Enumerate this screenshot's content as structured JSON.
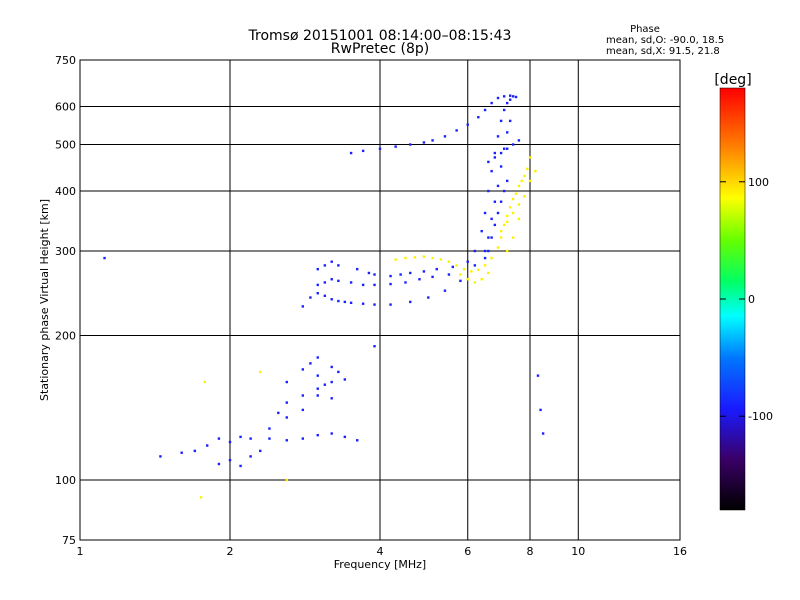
{
  "chart_data": {
    "type": "scatter",
    "title": "Tromsø 20151001 08:14:00–08:15:43",
    "subtitle": "RwPretec (8p)",
    "xlabel": "Frequency [MHz]",
    "ylabel": "Stationary phase Virtual Height [km]",
    "x_scale": "log",
    "y_scale": "log",
    "xlim": [
      1,
      16
    ],
    "ylim": [
      75,
      750
    ],
    "x_ticks": [
      1,
      2,
      4,
      6,
      8,
      10,
      16
    ],
    "x_tick_labels": [
      "1",
      "2",
      "4",
      "6",
      "8",
      "10",
      "16"
    ],
    "y_ticks": [
      75,
      100,
      200,
      300,
      400,
      500,
      600,
      750
    ],
    "y_tick_labels": [
      "75",
      "100",
      "200",
      "300",
      "400",
      "500",
      "600",
      "750"
    ],
    "x_grid": [
      1,
      2,
      4,
      6,
      8,
      10,
      16
    ],
    "y_grid": [
      100,
      200,
      300,
      400,
      500,
      600
    ],
    "grid": true,
    "stats": {
      "heading": "Phase",
      "line_o": "mean, sd,O: -90.0, 18.5",
      "line_x": "mean, sd,X:  91.5, 21.8"
    },
    "colorbar": {
      "label": "[deg]",
      "range": [
        -180,
        180
      ],
      "ticks": [
        100,
        0,
        -100
      ],
      "tick_labels": [
        "100",
        "0",
        "-100"
      ]
    },
    "series": [
      {
        "mode": "O",
        "phase_mean_deg": -90.0,
        "phase_sd_deg": 18.5,
        "x": [
          1.45,
          1.6,
          1.7,
          1.8,
          1.9,
          2.0,
          2.1,
          2.2,
          2.4,
          2.6,
          2.8,
          3.0,
          3.2,
          3.4,
          3.6,
          1.9,
          2.0,
          2.1,
          2.2,
          2.3,
          2.4,
          2.6,
          2.8,
          3.0,
          3.2,
          2.5,
          2.6,
          2.8,
          3.0,
          3.2,
          2.6,
          2.8,
          3.0,
          2.9,
          3.0,
          3.1,
          3.2,
          3.3,
          3.4,
          2.8,
          2.9,
          3.0,
          3.1,
          3.2,
          3.3,
          3.4,
          3.5,
          3.7,
          3.9,
          4.2,
          4.6,
          5.0,
          5.4,
          5.8,
          6.2,
          6.5,
          3.0,
          3.1,
          3.2,
          3.3,
          3.5,
          3.7,
          3.9,
          4.2,
          4.5,
          4.8,
          5.1,
          5.5,
          3.0,
          3.1,
          3.2,
          3.3,
          3.6,
          3.8,
          3.9,
          4.2,
          4.4,
          4.6,
          4.9,
          5.2,
          5.6,
          6.0,
          6.2,
          6.4,
          6.5,
          6.6,
          6.7,
          6.8,
          6.9,
          7.0,
          7.1,
          7.2,
          7.3,
          7.4,
          6.6,
          6.7,
          6.8,
          6.9,
          7.0,
          7.1,
          7.2,
          7.3,
          6.5,
          6.6,
          6.7,
          6.8,
          6.9,
          7.0,
          7.1,
          7.2,
          3.5,
          3.7,
          4.0,
          4.3,
          4.6,
          4.9,
          5.1,
          5.4,
          5.7,
          6.0,
          6.3,
          6.5,
          6.7,
          6.9,
          7.1,
          7.3,
          7.5,
          6.6,
          6.8,
          7.0,
          7.2,
          7.4,
          7.6,
          1.12,
          3.9,
          8.3,
          8.4,
          8.5
        ],
        "y": [
          112,
          114,
          115,
          118,
          122,
          120,
          123,
          122,
          122,
          121,
          122,
          124,
          125,
          123,
          121,
          108,
          110,
          107,
          112,
          115,
          128,
          135,
          140,
          150,
          160,
          138,
          145,
          150,
          155,
          148,
          160,
          170,
          180,
          175,
          165,
          158,
          172,
          168,
          162,
          230,
          240,
          245,
          242,
          238,
          236,
          235,
          234,
          233,
          232,
          232,
          235,
          240,
          248,
          260,
          280,
          300,
          255,
          258,
          262,
          260,
          258,
          255,
          255,
          256,
          258,
          262,
          265,
          268,
          275,
          280,
          285,
          280,
          275,
          270,
          268,
          266,
          268,
          270,
          272,
          275,
          278,
          285,
          300,
          330,
          360,
          400,
          440,
          480,
          520,
          560,
          590,
          610,
          620,
          630,
          320,
          350,
          380,
          410,
          450,
          490,
          530,
          560,
          290,
          300,
          320,
          340,
          360,
          380,
          400,
          420,
          480,
          485,
          490,
          495,
          500,
          505,
          510,
          520,
          535,
          550,
          570,
          590,
          610,
          625,
          630,
          632,
          628,
          460,
          470,
          480,
          490,
          500,
          510,
          290,
          190,
          165,
          140,
          125
        ]
      },
      {
        "mode": "X",
        "phase_mean_deg": 91.5,
        "phase_sd_deg": 21.8,
        "x": [
          4.3,
          4.5,
          4.7,
          4.9,
          5.1,
          5.3,
          5.5,
          5.7,
          5.9,
          6.1,
          6.3,
          6.5,
          6.7,
          6.9,
          7.0,
          7.1,
          7.2,
          7.3,
          7.4,
          7.5,
          7.6,
          7.7,
          7.8,
          7.9,
          8.0,
          7.2,
          7.4,
          7.6,
          7.8,
          8.0,
          8.2,
          7.0,
          7.2,
          7.4,
          7.6,
          7.8,
          5.8,
          6.0,
          6.2,
          6.4,
          6.6,
          1.78,
          1.75,
          2.6,
          2.3
        ],
        "y": [
          288,
          290,
          291,
          292,
          290,
          288,
          285,
          280,
          275,
          272,
          274,
          280,
          290,
          305,
          320,
          340,
          355,
          370,
          385,
          395,
          410,
          420,
          430,
          445,
          470,
          300,
          320,
          350,
          390,
          420,
          440,
          330,
          345,
          360,
          375,
          390,
          268,
          262,
          258,
          262,
          270,
          160,
          92,
          100,
          168
        ]
      }
    ]
  }
}
